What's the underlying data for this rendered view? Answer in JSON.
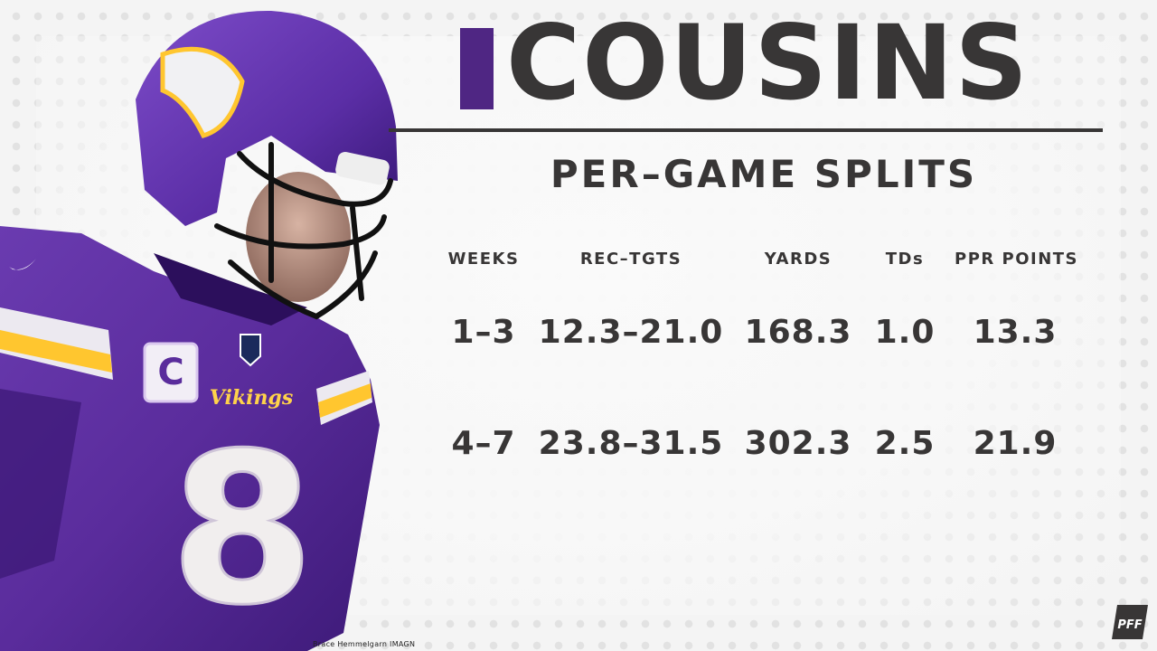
{
  "header": {
    "title": "COUSINS",
    "subtitle": "PER–GAME SPLITS"
  },
  "table": {
    "columns": [
      "WEEKS",
      "REC–TGTS",
      "YARDS",
      "TDs",
      "PPR POINTS"
    ],
    "rows": [
      [
        "1–3",
        "12.3–21.0",
        "168.3",
        "1.0",
        "13.3"
      ],
      [
        "4–7",
        "23.8–31.5",
        "302.3",
        "2.5",
        "21.9"
      ]
    ]
  },
  "photo": {
    "jersey_number": "8",
    "team_wordmark": "VIKINGS",
    "credit": "Brace Hemmelgarn IMAGN"
  },
  "brand": {
    "logo_text": "PFF",
    "accent": "#4f2683",
    "gold": "#ffc62f",
    "text_color": "#383636"
  }
}
